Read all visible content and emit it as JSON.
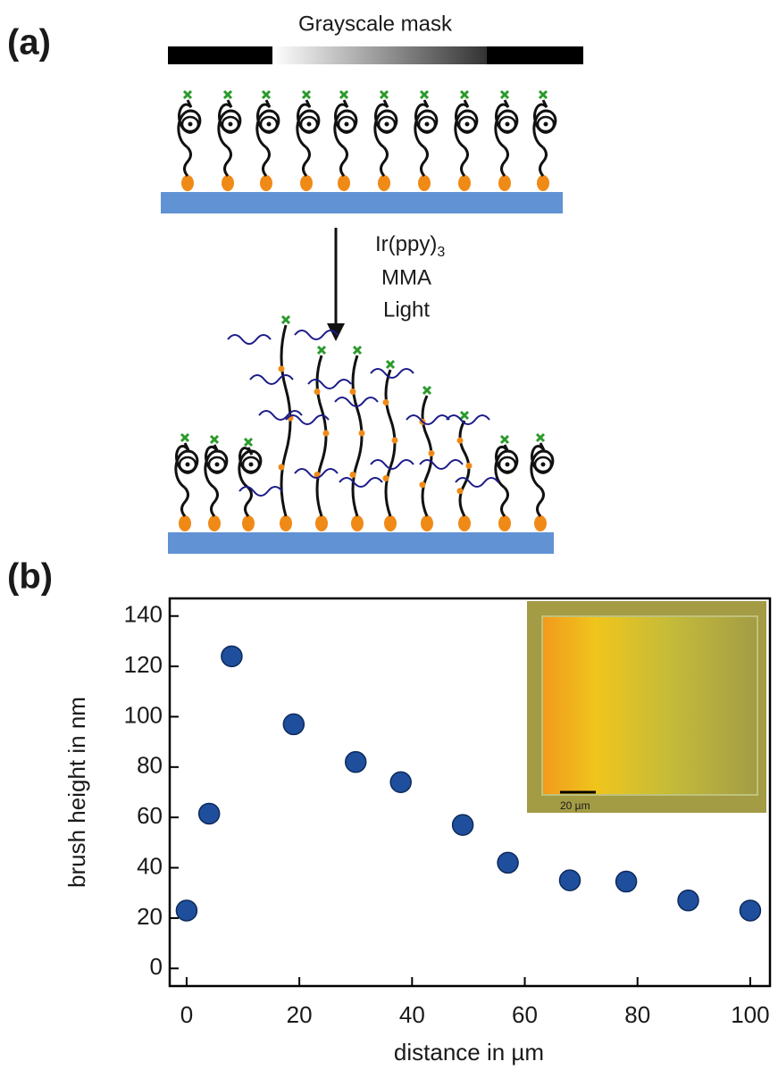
{
  "panels": [
    "(a)",
    "(b)"
  ],
  "diagram": {
    "mask_label": "Grayscale mask",
    "catalyst": "Ir(ppy)",
    "catalyst_subscript": "3",
    "monomer": "MMA",
    "condition": "Light"
  },
  "inset": {
    "scale_label": "20 µm"
  },
  "chart_data": {
    "type": "scatter",
    "x_label": "distance in µm",
    "y_label": "brush height in nm",
    "x": [
      0,
      4,
      8,
      19,
      30,
      38,
      49,
      57,
      68,
      78,
      89,
      100
    ],
    "values": [
      23,
      61.5,
      124,
      97,
      82,
      74,
      57,
      42,
      35,
      34.5,
      27,
      23
    ],
    "color": "#1f4f9c",
    "xlim": [
      -3,
      103.5
    ],
    "ylim": [
      -7,
      147
    ],
    "xticks": [
      0,
      20,
      40,
      60,
      80,
      100
    ],
    "yticks": [
      0,
      20,
      40,
      60,
      80,
      100,
      120,
      140
    ]
  }
}
